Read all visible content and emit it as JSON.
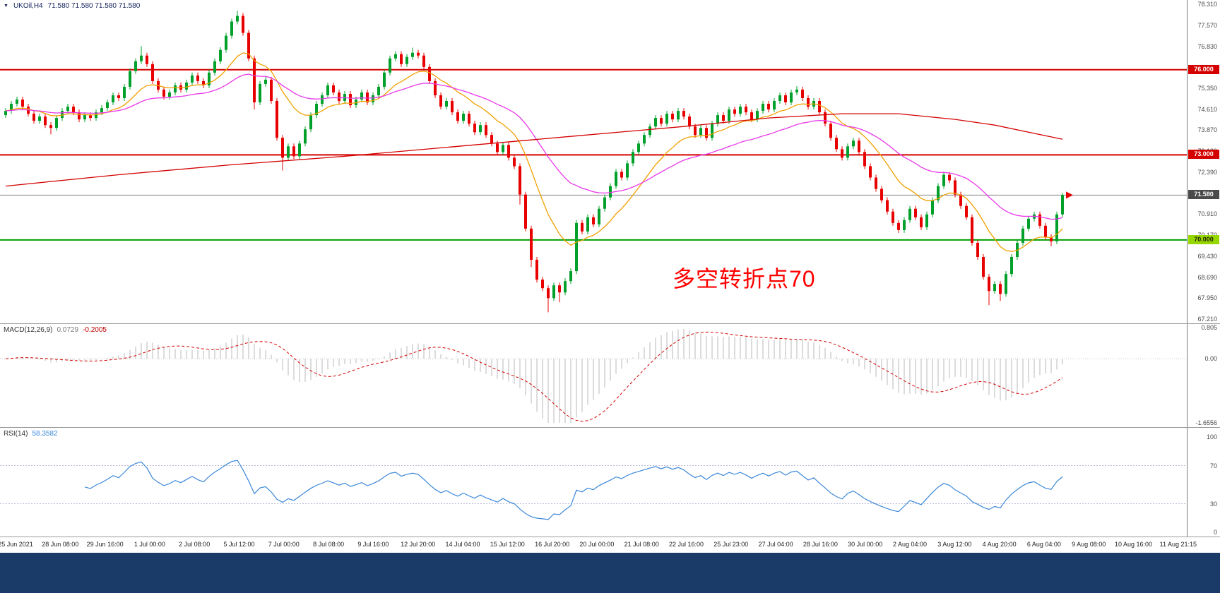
{
  "window": {
    "bottom_bar_color": "#1A3A68"
  },
  "header": {
    "dropdown_icon": "▼",
    "symbol": "UKOil,H4",
    "ohlc": "71.580 71.580 71.580 71.580"
  },
  "annotation": {
    "text": "多空转折点70",
    "color": "#FF0000"
  },
  "chart_data": {
    "type": "candlestick",
    "title": "UKOil H4 chart with MACD and RSI",
    "x_labels": [
      "25 Jun 2021",
      "28 Jun 08:00",
      "29 Jun 16:00",
      "1 Jul 00:00",
      "2 Jul 08:00",
      "5 Jul 12:00",
      "7 Jul 00:00",
      "8 Jul 08:00",
      "9 Jul 16:00",
      "12 Jul 20:00",
      "14 Jul 04:00",
      "15 Jul 12:00",
      "16 Jul 20:00",
      "20 Jul 00:00",
      "21 Jul 08:00",
      "22 Jul 16:00",
      "25 Jul 23:00",
      "27 Jul 04:00",
      "28 Jul 16:00",
      "30 Jul 00:00",
      "2 Aug 04:00",
      "3 Aug 12:00",
      "4 Aug 20:00",
      "6 Aug 04:00",
      "9 Aug 08:00",
      "10 Aug 16:00",
      "11 Aug 21:15"
    ],
    "y_axis": {
      "min": 67.21,
      "max": 78.31,
      "ticks": [
        78.31,
        77.57,
        76.83,
        75.35,
        74.61,
        73.87,
        73.13,
        72.39,
        70.91,
        70.17,
        69.43,
        68.69,
        67.95,
        67.21
      ]
    },
    "levels": [
      {
        "value": 76.0,
        "label": "76.000",
        "color": "#D40000",
        "label_bg": "#D40000",
        "text_color": "#FFFFFF"
      },
      {
        "value": 73.0,
        "label": "73.000",
        "color": "#D40000",
        "label_bg": "#D40000",
        "text_color": "#FFFFFF"
      },
      {
        "value": 70.0,
        "label": "70.000",
        "color": "#00A000",
        "label_bg": "#97D700",
        "text_color": "#222200"
      }
    ],
    "current_price": {
      "value": 71.58,
      "label": "71.580",
      "line_color": "#808080",
      "bg": "#4A4A4A",
      "text_color": "#FFFFFF"
    },
    "candles": {
      "up_color": "#00A02A",
      "down_color": "#E80000",
      "first_open": 74.4,
      "default_wick": 0.1,
      "closes": [
        74.55,
        74.8,
        74.95,
        74.7,
        74.45,
        74.2,
        74.35,
        74.05,
        73.95,
        74.3,
        74.55,
        74.7,
        74.5,
        74.25,
        74.4,
        74.3,
        74.5,
        74.65,
        74.85,
        75.1,
        75.0,
        75.4,
        75.95,
        76.3,
        76.5,
        76.2,
        75.6,
        75.3,
        75.05,
        75.2,
        75.45,
        75.3,
        75.55,
        75.8,
        75.6,
        75.45,
        75.9,
        76.3,
        76.7,
        77.2,
        77.7,
        77.9,
        77.3,
        76.4,
        74.85,
        75.5,
        75.65,
        74.9,
        73.6,
        72.9,
        73.3,
        72.95,
        73.4,
        73.9,
        74.4,
        74.8,
        75.1,
        75.45,
        75.2,
        74.9,
        75.15,
        74.75,
        74.95,
        75.2,
        74.85,
        75.1,
        75.4,
        75.9,
        76.4,
        76.55,
        76.2,
        76.45,
        76.6,
        76.5,
        76.1,
        75.6,
        75.1,
        74.7,
        74.9,
        74.5,
        74.2,
        74.45,
        74.1,
        73.8,
        74.05,
        73.7,
        73.4,
        73.1,
        73.35,
        72.9,
        72.6,
        71.6,
        70.4,
        69.3,
        68.6,
        68.3,
        67.95,
        68.4,
        68.15,
        68.55,
        68.9,
        70.6,
        70.3,
        70.8,
        70.55,
        71.1,
        71.5,
        71.9,
        72.4,
        72.2,
        72.7,
        73.1,
        73.4,
        73.7,
        74.0,
        74.3,
        74.1,
        74.45,
        74.25,
        74.55,
        74.35,
        74.0,
        73.7,
        73.95,
        73.6,
        74.1,
        74.4,
        74.2,
        74.6,
        74.45,
        74.7,
        74.5,
        74.25,
        74.55,
        74.8,
        74.6,
        74.9,
        75.1,
        74.85,
        75.2,
        75.3,
        75.0,
        74.7,
        74.9,
        74.5,
        74.1,
        73.6,
        73.2,
        72.9,
        73.3,
        73.5,
        73.1,
        72.6,
        72.2,
        71.8,
        71.4,
        71.0,
        70.6,
        70.35,
        70.7,
        71.1,
        70.8,
        70.45,
        70.9,
        71.4,
        71.9,
        72.3,
        72.1,
        71.6,
        71.2,
        70.8,
        69.9,
        69.4,
        68.7,
        68.2,
        68.45,
        68.1,
        68.8,
        69.4,
        69.9,
        70.4,
        70.75,
        70.9,
        70.5,
        70.1,
        69.95,
        70.9,
        71.58
      ],
      "special_highs": {
        "24": 76.83,
        "41": 78.08,
        "72": 76.78,
        "140": 75.42,
        "187": 71.66
      },
      "special_lows": {
        "8": 73.72,
        "44": 74.6,
        "49": 72.45,
        "91": 71.25,
        "93": 69.05,
        "96": 67.45,
        "98": 67.8,
        "174": 67.7,
        "176": 67.85,
        "185": 69.78
      }
    },
    "overlays": [
      {
        "name": "ma-fast-line",
        "type": "ema",
        "period": 13,
        "color": "#F0A000"
      },
      {
        "name": "ma-mid-line",
        "type": "ema",
        "period": 34,
        "color": "#E838E8"
      },
      {
        "name": "ma-slow-line",
        "type": "points",
        "color": "#D40000",
        "points": [
          [
            0,
            71.9
          ],
          [
            20,
            72.3
          ],
          [
            40,
            72.65
          ],
          [
            60,
            72.95
          ],
          [
            80,
            73.3
          ],
          [
            100,
            73.65
          ],
          [
            120,
            74.0
          ],
          [
            135,
            74.3
          ],
          [
            148,
            74.45
          ],
          [
            158,
            74.45
          ],
          [
            168,
            74.25
          ],
          [
            175,
            74.05
          ],
          [
            181,
            73.8
          ],
          [
            187,
            73.55
          ]
        ]
      }
    ],
    "indicators": [
      {
        "id": "macd",
        "label": "MACD(12,26,9)",
        "value_1": "0.0729",
        "value_2": "-0.2005",
        "params": {
          "fast": 12,
          "slow": 26,
          "signal": 9
        },
        "range": [
          0.805,
          -1.6556
        ],
        "axis_labels": [
          {
            "v": 0.805,
            "t": "0.805"
          },
          {
            "v": 0,
            "t": "0.00"
          },
          {
            "v": -1.6556,
            "t": "-1.6556"
          }
        ],
        "hist_color": "#B9B9B9",
        "signal_color": "#D40000"
      },
      {
        "id": "rsi",
        "label": "RSI(14)",
        "value": "58.3582",
        "period": 14,
        "range": [
          0,
          100
        ],
        "levels": [
          70,
          30
        ],
        "axis_labels": [
          {
            "v": 100,
            "t": "100"
          },
          {
            "v": 70,
            "t": "70"
          },
          {
            "v": 30,
            "t": "30"
          },
          {
            "v": 0,
            "t": "0"
          }
        ],
        "line_color": "#3B87D9",
        "level_color": "#B9B9D9"
      }
    ]
  }
}
